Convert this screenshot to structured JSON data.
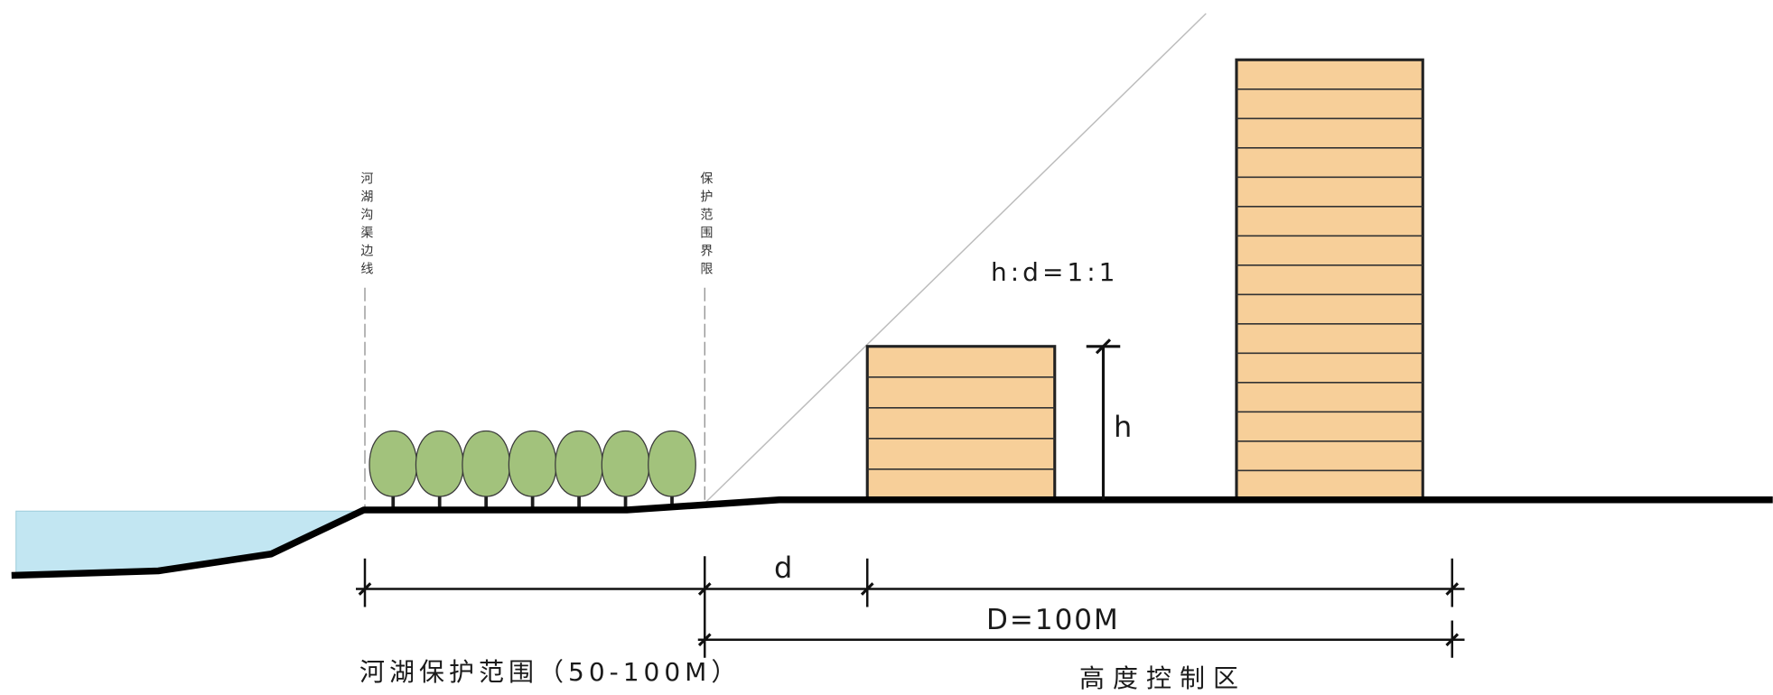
{
  "boundary_labels": {
    "river_edge": "河湖沟渠边线",
    "protection_limit": "保护范围界限"
  },
  "ratio_label": "h:d=1:1",
  "height_label": "h",
  "distance_label": "d",
  "control_distance_label": "D=100M",
  "zones": {
    "protection": "河湖保护范围（50-100M）",
    "height_control": "高度控制区"
  },
  "trees": {
    "count": 7
  },
  "low_building": {
    "floors": 5
  },
  "high_building": {
    "floors": 15
  },
  "colors": {
    "water": "#c2e6f2",
    "building": "#f7cf99",
    "tree": "#a2c27c",
    "ground": "#000000",
    "sight_line": "#bdbdbd",
    "boundary_line": "#8a8a8a"
  }
}
